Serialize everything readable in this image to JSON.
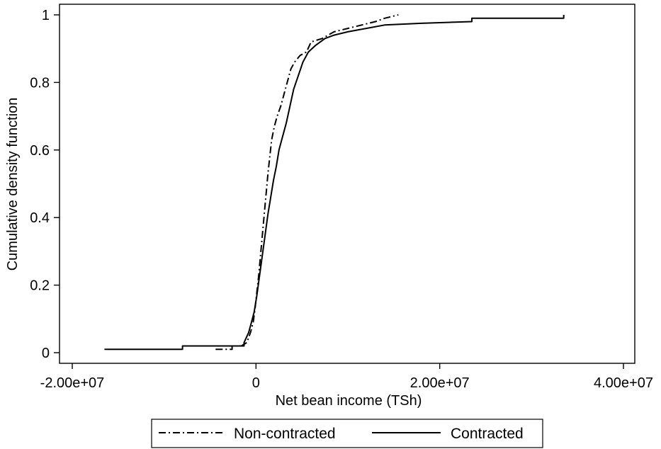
{
  "chart_data": {
    "type": "line",
    "title": "",
    "xlabel": "Net bean income (TSh)",
    "ylabel": "Cumulative density function",
    "xlim": [
      -20000000,
      40000000
    ],
    "ylim": [
      0,
      1
    ],
    "grid": false,
    "legend_placement": "bottom",
    "x_ticks": [
      {
        "value": -20000000,
        "label": "-2.00e+07"
      },
      {
        "value": 0,
        "label": "0"
      },
      {
        "value": 20000000,
        "label": "2.00e+07"
      },
      {
        "value": 40000000,
        "label": "4.00e+07"
      }
    ],
    "y_ticks": [
      {
        "value": 0,
        "label": "0"
      },
      {
        "value": 0.2,
        "label": "0.2"
      },
      {
        "value": 0.4,
        "label": "0.4"
      },
      {
        "value": 0.6,
        "label": "0.6"
      },
      {
        "value": 0.8,
        "label": "0.8"
      },
      {
        "value": 1,
        "label": "1"
      }
    ],
    "series": [
      {
        "name": "Non-contracted",
        "style": "dash-dot",
        "color": "#000000",
        "points": [
          [
            -4400000,
            0.01
          ],
          [
            -2600000,
            0.01
          ],
          [
            -2600000,
            0.02
          ],
          [
            -1600000,
            0.02
          ],
          [
            -1000000,
            0.03
          ],
          [
            -600000,
            0.06
          ],
          [
            -300000,
            0.09
          ],
          [
            -100000,
            0.13
          ],
          [
            100000,
            0.18
          ],
          [
            300000,
            0.23
          ],
          [
            500000,
            0.29
          ],
          [
            700000,
            0.35
          ],
          [
            900000,
            0.41
          ],
          [
            1100000,
            0.47
          ],
          [
            1300000,
            0.53
          ],
          [
            1500000,
            0.58
          ],
          [
            1700000,
            0.63
          ],
          [
            2000000,
            0.67
          ],
          [
            2300000,
            0.7
          ],
          [
            2700000,
            0.73
          ],
          [
            3100000,
            0.77
          ],
          [
            3500000,
            0.81
          ],
          [
            3800000,
            0.84
          ],
          [
            4200000,
            0.86
          ],
          [
            4800000,
            0.88
          ],
          [
            5500000,
            0.89
          ],
          [
            6000000,
            0.92
          ],
          [
            7200000,
            0.93
          ],
          [
            8500000,
            0.95
          ],
          [
            10000000,
            0.96
          ],
          [
            11500000,
            0.97
          ],
          [
            13000000,
            0.98
          ],
          [
            14000000,
            0.99
          ],
          [
            15500000,
            1.0
          ]
        ]
      },
      {
        "name": "Contracted",
        "style": "solid",
        "color": "#000000",
        "points": [
          [
            -16500000,
            0.01
          ],
          [
            -8000000,
            0.01
          ],
          [
            -8000000,
            0.02
          ],
          [
            -1300000,
            0.02
          ],
          [
            -1300000,
            0.03
          ],
          [
            -800000,
            0.06
          ],
          [
            -500000,
            0.09
          ],
          [
            -200000,
            0.12
          ],
          [
            100000,
            0.17
          ],
          [
            400000,
            0.23
          ],
          [
            700000,
            0.29
          ],
          [
            1000000,
            0.35
          ],
          [
            1300000,
            0.41
          ],
          [
            1600000,
            0.46
          ],
          [
            1900000,
            0.51
          ],
          [
            2200000,
            0.55
          ],
          [
            2500000,
            0.6
          ],
          [
            2900000,
            0.64
          ],
          [
            3300000,
            0.68
          ],
          [
            3700000,
            0.73
          ],
          [
            4100000,
            0.78
          ],
          [
            4600000,
            0.82
          ],
          [
            5100000,
            0.86
          ],
          [
            5700000,
            0.89
          ],
          [
            6500000,
            0.91
          ],
          [
            7500000,
            0.93
          ],
          [
            8500000,
            0.94
          ],
          [
            10000000,
            0.95
          ],
          [
            12000000,
            0.96
          ],
          [
            14000000,
            0.97
          ],
          [
            18000000,
            0.975
          ],
          [
            23500000,
            0.98
          ],
          [
            23500000,
            0.99
          ],
          [
            33500000,
            0.99
          ],
          [
            33500000,
            1.0
          ]
        ]
      }
    ]
  }
}
